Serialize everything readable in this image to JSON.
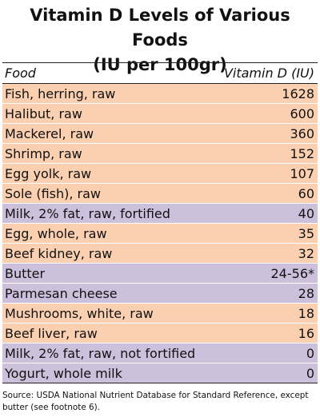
{
  "title_line1": "Vitamin D Levels of Various Foods",
  "title_line2": "(IU per 100gr)",
  "chart_data": {
    "type": "table",
    "columns": [
      "Food",
      "Vitamin D (IU)"
    ],
    "rows": [
      {
        "food": "Fish, herring, raw",
        "value": "1628",
        "category": "animal"
      },
      {
        "food": "Halibut, raw",
        "value": "600",
        "category": "animal"
      },
      {
        "food": "Mackerel, raw",
        "value": "360",
        "category": "animal"
      },
      {
        "food": "Shrimp, raw",
        "value": "152",
        "category": "animal"
      },
      {
        "food": "Egg yolk, raw",
        "value": "107",
        "category": "animal"
      },
      {
        "food": "Sole (fish), raw",
        "value": "60",
        "category": "animal"
      },
      {
        "food": "Milk, 2% fat, raw, fortified",
        "value": "40",
        "category": "dairy"
      },
      {
        "food": "Egg, whole, raw",
        "value": "35",
        "category": "animal"
      },
      {
        "food": "Beef kidney, raw",
        "value": "32",
        "category": "animal"
      },
      {
        "food": "Butter",
        "value": "24-56*",
        "category": "dairy"
      },
      {
        "food": "Parmesan cheese",
        "value": "28",
        "category": "dairy"
      },
      {
        "food": "Mushrooms, white, raw",
        "value": "18",
        "category": "animal"
      },
      {
        "food": "Beef liver, raw",
        "value": "16",
        "category": "animal"
      },
      {
        "food": "Milk, 2% fat, raw, not fortified",
        "value": "0",
        "category": "dairy"
      },
      {
        "food": "Yogurt, whole milk",
        "value": "0",
        "category": "dairy"
      }
    ]
  },
  "colors": {
    "animal": "#fbd0b0",
    "dairy": "#cdc0dc"
  },
  "source": "Source: USDA National Nutrient Database for Standard Reference, except butter (see footnote 6)."
}
